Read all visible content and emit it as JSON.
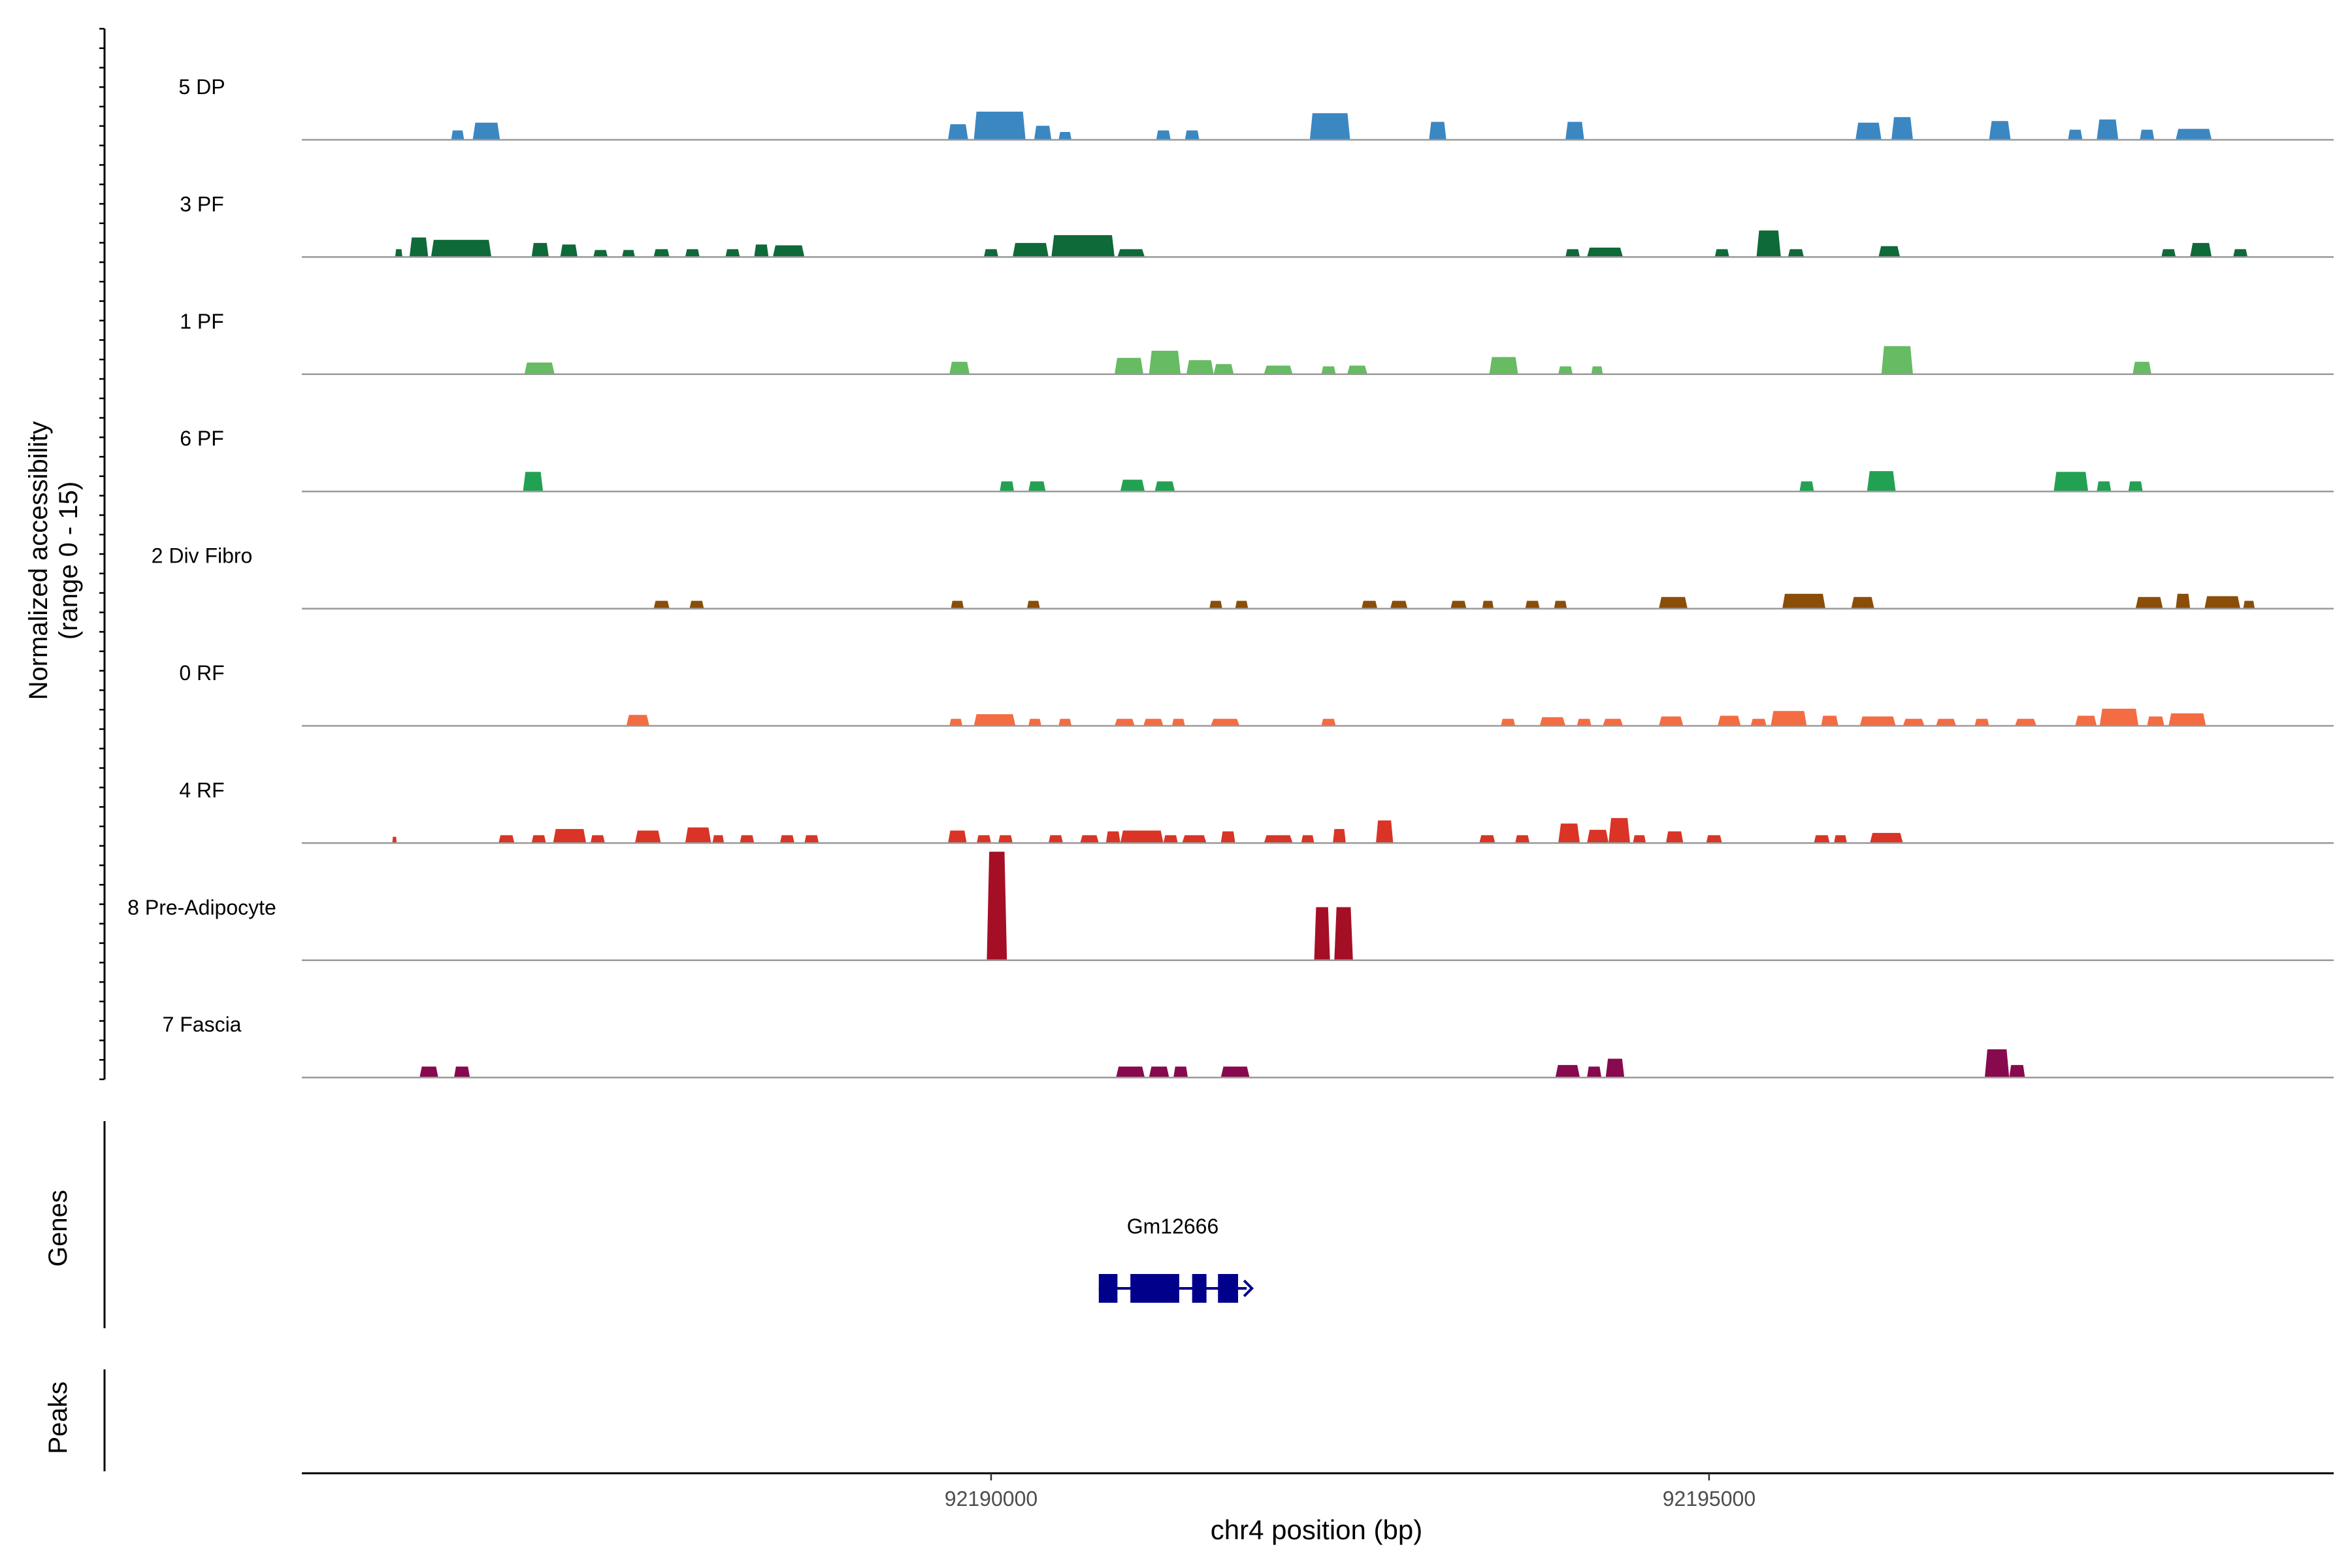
{
  "chart_data": {
    "type": "area",
    "title": "",
    "ylabel_line1": "Normalized accessibility",
    "ylabel_line2": "(range 0 - 15)",
    "xlabel": "chr4 position (bp)",
    "xlim": [
      92185200,
      92199350
    ],
    "ylim": [
      0,
      15
    ],
    "grid": false,
    "xticks": [
      {
        "value": 92190000,
        "label": "92190000"
      },
      {
        "value": 92195000,
        "label": "92195000"
      }
    ],
    "series": [
      {
        "name": "5 DP",
        "color": "#3b87c2",
        "peaks": [
          [
            92186240,
            92186330,
            1.2
          ],
          [
            92186390,
            92186580,
            2.2
          ],
          [
            92189700,
            92189840,
            2.0
          ],
          [
            92189880,
            92190240,
            3.6
          ],
          [
            92190300,
            92190420,
            1.8
          ],
          [
            92190470,
            92190560,
            1.0
          ],
          [
            92191150,
            92191250,
            1.2
          ],
          [
            92191350,
            92191450,
            1.2
          ],
          [
            92192220,
            92192500,
            3.4
          ],
          [
            92193050,
            92193170,
            2.3
          ],
          [
            92194000,
            92194130,
            2.3
          ],
          [
            92196020,
            92196200,
            2.2
          ],
          [
            92196270,
            92196420,
            2.9
          ],
          [
            92196950,
            92197100,
            2.4
          ],
          [
            92197500,
            92197600,
            1.3
          ],
          [
            92197700,
            92197850,
            2.6
          ],
          [
            92198000,
            92198100,
            1.3
          ],
          [
            92198250,
            92198500,
            1.4
          ]
        ]
      },
      {
        "name": "3 PF",
        "color": "#0e6a38",
        "peaks": [
          [
            92185850,
            92185900,
            1.0
          ],
          [
            92185950,
            92186080,
            2.5
          ],
          [
            92186100,
            92186520,
            2.2
          ],
          [
            92186800,
            92186920,
            1.8
          ],
          [
            92187000,
            92187120,
            1.6
          ],
          [
            92187230,
            92187330,
            0.9
          ],
          [
            92187430,
            92187520,
            0.9
          ],
          [
            92187650,
            92187760,
            1.0
          ],
          [
            92187870,
            92187970,
            1.0
          ],
          [
            92188150,
            92188250,
            1.0
          ],
          [
            92188350,
            92188450,
            1.6
          ],
          [
            92188480,
            92188700,
            1.5
          ],
          [
            92189950,
            92190050,
            1.0
          ],
          [
            92190150,
            92190400,
            1.8
          ],
          [
            92190420,
            92190860,
            2.8
          ],
          [
            92190880,
            92191070,
            1.0
          ],
          [
            92194000,
            92194100,
            1.0
          ],
          [
            92194150,
            92194400,
            1.2
          ],
          [
            92195040,
            92195140,
            1.0
          ],
          [
            92195330,
            92195500,
            3.4
          ],
          [
            92195550,
            92195660,
            1.0
          ],
          [
            92196180,
            92196330,
            1.4
          ],
          [
            92198150,
            92198250,
            1.0
          ],
          [
            92198350,
            92198500,
            1.8
          ],
          [
            92198650,
            92198750,
            1.0
          ]
        ]
      },
      {
        "name": "1 PF",
        "color": "#66bb63",
        "peaks": [
          [
            92186750,
            92186960,
            1.5
          ],
          [
            92189710,
            92189850,
            1.6
          ],
          [
            92190860,
            92191060,
            2.1
          ],
          [
            92191100,
            92191320,
            3.0
          ],
          [
            92191360,
            92191550,
            1.8
          ],
          [
            92191550,
            92191690,
            1.3
          ],
          [
            92191900,
            92192100,
            1.1
          ],
          [
            92192300,
            92192400,
            1.0
          ],
          [
            92192480,
            92192620,
            1.1
          ],
          [
            92193470,
            92193670,
            2.2
          ],
          [
            92193950,
            92194050,
            1.0
          ],
          [
            92194180,
            92194260,
            1.0
          ],
          [
            92196200,
            92196420,
            3.6
          ],
          [
            92197950,
            92198080,
            1.6
          ]
        ]
      },
      {
        "name": "6 PF",
        "color": "#23a153",
        "peaks": [
          [
            92186740,
            92186880,
            2.5
          ],
          [
            92190060,
            92190160,
            1.3
          ],
          [
            92190260,
            92190380,
            1.3
          ],
          [
            92190900,
            92191070,
            1.5
          ],
          [
            92191140,
            92191280,
            1.3
          ],
          [
            92195630,
            92195730,
            1.3
          ],
          [
            92196100,
            92196300,
            2.6
          ],
          [
            92197400,
            92197640,
            2.5
          ],
          [
            92197700,
            92197800,
            1.3
          ],
          [
            92197920,
            92198020,
            1.3
          ]
        ]
      },
      {
        "name": "2 Div Fibro",
        "color": "#8a4e09",
        "peaks": [
          [
            92187650,
            92187760,
            1.0
          ],
          [
            92187900,
            92188000,
            1.0
          ],
          [
            92189720,
            92189810,
            1.0
          ],
          [
            92190250,
            92190340,
            1.0
          ],
          [
            92191520,
            92191610,
            1.0
          ],
          [
            92191700,
            92191790,
            1.0
          ],
          [
            92192580,
            92192690,
            1.0
          ],
          [
            92192780,
            92192900,
            1.0
          ],
          [
            92193200,
            92193310,
            1.0
          ],
          [
            92193420,
            92193500,
            1.0
          ],
          [
            92193720,
            92193820,
            1.0
          ],
          [
            92193920,
            92194010,
            1.0
          ],
          [
            92194650,
            92194850,
            1.5
          ],
          [
            92195510,
            92195810,
            1.9
          ],
          [
            92195990,
            92196150,
            1.5
          ],
          [
            92197970,
            92198160,
            1.5
          ],
          [
            92198250,
            92198350,
            1.9
          ],
          [
            92198450,
            92198700,
            1.6
          ],
          [
            92198720,
            92198800,
            1.0
          ]
        ]
      },
      {
        "name": "0 RF",
        "color": "#f36c42",
        "peaks": [
          [
            92187460,
            92187620,
            1.4
          ],
          [
            92189710,
            92189800,
            0.9
          ],
          [
            92189880,
            92190170,
            1.5
          ],
          [
            92190260,
            92190350,
            0.9
          ],
          [
            92190470,
            92190560,
            0.9
          ],
          [
            92190860,
            92191000,
            0.9
          ],
          [
            92191060,
            92191200,
            0.9
          ],
          [
            92191260,
            92191350,
            0.9
          ],
          [
            92191530,
            92191730,
            0.9
          ],
          [
            92192300,
            92192400,
            0.9
          ],
          [
            92193550,
            92193650,
            0.9
          ],
          [
            92193820,
            92194000,
            1.1
          ],
          [
            92194080,
            92194180,
            0.9
          ],
          [
            92194260,
            92194400,
            0.9
          ],
          [
            92194650,
            92194820,
            1.2
          ],
          [
            92195060,
            92195220,
            1.3
          ],
          [
            92195290,
            92195400,
            0.9
          ],
          [
            92195430,
            92195680,
            1.9
          ],
          [
            92195780,
            92195900,
            1.3
          ],
          [
            92196050,
            92196300,
            1.2
          ],
          [
            92196350,
            92196500,
            0.9
          ],
          [
            92196580,
            92196720,
            0.9
          ],
          [
            92196850,
            92196950,
            0.9
          ],
          [
            92197130,
            92197280,
            0.9
          ],
          [
            92197550,
            92197700,
            1.3
          ],
          [
            92197720,
            92197990,
            2.2
          ],
          [
            92198050,
            92198170,
            1.2
          ],
          [
            92198200,
            92198460,
            1.6
          ]
        ]
      },
      {
        "name": "4 RF",
        "color": "#d93425",
        "peaks": [
          [
            92185830,
            92185860,
            0.8
          ],
          [
            92186570,
            92186680,
            1.0
          ],
          [
            92186800,
            92186900,
            1.0
          ],
          [
            92186950,
            92187180,
            1.8
          ],
          [
            92187210,
            92187310,
            1.0
          ],
          [
            92187520,
            92187700,
            1.6
          ],
          [
            92187870,
            92188050,
            2.0
          ],
          [
            92188060,
            92188140,
            1.0
          ],
          [
            92188250,
            92188350,
            1.0
          ],
          [
            92188530,
            92188630,
            1.0
          ],
          [
            92188700,
            92188800,
            1.0
          ],
          [
            92189700,
            92189830,
            1.6
          ],
          [
            92189900,
            92190000,
            1.0
          ],
          [
            92190050,
            92190150,
            1.0
          ],
          [
            92190400,
            92190500,
            1.0
          ],
          [
            92190620,
            92190750,
            1.0
          ],
          [
            92190800,
            92190900,
            1.5
          ],
          [
            92190900,
            92191200,
            1.6
          ],
          [
            92191200,
            92191300,
            1.0
          ],
          [
            92191330,
            92191500,
            1.0
          ],
          [
            92191600,
            92191700,
            1.5
          ],
          [
            92191900,
            92192100,
            1.0
          ],
          [
            92192160,
            92192250,
            1.0
          ],
          [
            92192380,
            92192470,
            1.8
          ],
          [
            92192680,
            92192800,
            2.9
          ],
          [
            92193400,
            92193510,
            1.0
          ],
          [
            92193650,
            92193750,
            1.0
          ],
          [
            92193950,
            92194100,
            2.5
          ],
          [
            92194150,
            92194300,
            1.7
          ],
          [
            92194300,
            92194450,
            3.2
          ],
          [
            92194470,
            92194560,
            1.0
          ],
          [
            92194700,
            92194820,
            1.5
          ],
          [
            92194980,
            92195090,
            1.0
          ],
          [
            92195730,
            92195840,
            1.0
          ],
          [
            92195870,
            92195960,
            1.0
          ],
          [
            92196120,
            92196350,
            1.3
          ]
        ]
      },
      {
        "name": "8 Pre-Adipocyte",
        "color": "#a50f26",
        "peaks": [
          [
            92189970,
            92190110,
            13.9
          ],
          [
            92192250,
            92192360,
            6.8
          ],
          [
            92192390,
            92192520,
            6.8
          ]
        ]
      },
      {
        "name": "7 Fascia",
        "color": "#870a4e",
        "peaks": [
          [
            92186020,
            92186150,
            1.4
          ],
          [
            92186260,
            92186370,
            1.4
          ],
          [
            92190870,
            92191070,
            1.4
          ],
          [
            92191100,
            92191240,
            1.4
          ],
          [
            92191270,
            92191370,
            1.4
          ],
          [
            92191600,
            92191800,
            1.4
          ],
          [
            92193930,
            92194100,
            1.6
          ],
          [
            92194150,
            92194250,
            1.4
          ],
          [
            92194280,
            92194410,
            2.4
          ],
          [
            92196920,
            92197090,
            3.6
          ],
          [
            92197090,
            92197200,
            1.6
          ]
        ]
      }
    ],
    "genes_label": "Genes",
    "peaks_label": "Peaks",
    "gene": {
      "name": "Gm12666",
      "start": 92190750,
      "end": 92191780,
      "color": "#00008b",
      "exons": [
        [
          92190750,
          92190880
        ],
        [
          92190970,
          92191310
        ],
        [
          92191400,
          92191500
        ],
        [
          92191580,
          92191720
        ]
      ]
    }
  }
}
